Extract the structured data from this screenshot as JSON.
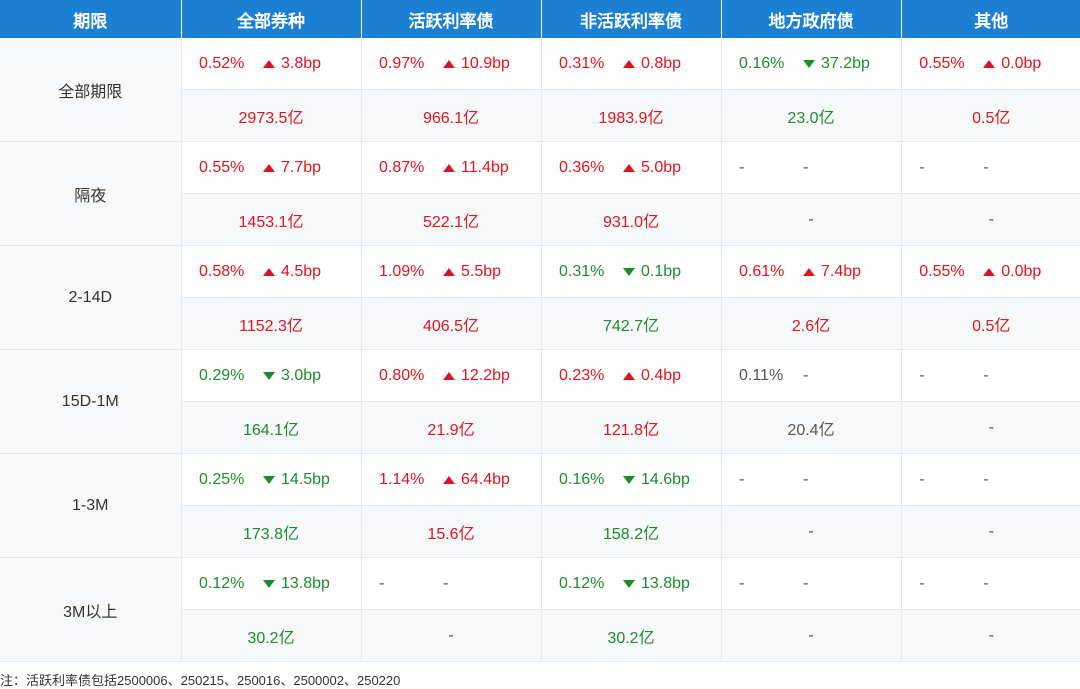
{
  "headers": [
    "期限",
    "全部券种",
    "活跃利率债",
    "非活跃利率债",
    "地方政府债",
    "其他"
  ],
  "colors": {
    "header": "#1b7fd3",
    "up": "#e0141e",
    "down": "#1c8c2c",
    "neutral": "#555555"
  },
  "rows": [
    {
      "label": "全部期限",
      "rates": [
        {
          "pct": "0.52%",
          "dir": "up",
          "chg": "3.8bp",
          "pct_color": "red",
          "chg_color": "red"
        },
        {
          "pct": "0.97%",
          "dir": "up",
          "chg": "10.9bp",
          "pct_color": "red",
          "chg_color": "red"
        },
        {
          "pct": "0.31%",
          "dir": "up",
          "chg": "0.8bp",
          "pct_color": "red",
          "chg_color": "red"
        },
        {
          "pct": "0.16%",
          "dir": "down",
          "chg": "37.2bp",
          "pct_color": "green",
          "chg_color": "green"
        },
        {
          "pct": "0.55%",
          "dir": "up",
          "chg": "0.0bp",
          "pct_color": "red",
          "chg_color": "red"
        }
      ],
      "amounts": [
        {
          "v": "2973.5亿",
          "color": "red"
        },
        {
          "v": "966.1亿",
          "color": "red"
        },
        {
          "v": "1983.9亿",
          "color": "red"
        },
        {
          "v": "23.0亿",
          "color": "green"
        },
        {
          "v": "0.5亿",
          "color": "red"
        }
      ]
    },
    {
      "label": "隔夜",
      "rates": [
        {
          "pct": "0.55%",
          "dir": "up",
          "chg": "7.7bp",
          "pct_color": "red",
          "chg_color": "red"
        },
        {
          "pct": "0.87%",
          "dir": "up",
          "chg": "11.4bp",
          "pct_color": "red",
          "chg_color": "red"
        },
        {
          "pct": "0.36%",
          "dir": "up",
          "chg": "5.0bp",
          "pct_color": "red",
          "chg_color": "red"
        },
        {
          "pct": "-",
          "dir": "none",
          "chg": "-",
          "pct_color": "neutral",
          "chg_color": "neutral"
        },
        {
          "pct": "-",
          "dir": "none",
          "chg": "-",
          "pct_color": "neutral",
          "chg_color": "neutral"
        }
      ],
      "amounts": [
        {
          "v": "1453.1亿",
          "color": "red"
        },
        {
          "v": "522.1亿",
          "color": "red"
        },
        {
          "v": "931.0亿",
          "color": "red"
        },
        {
          "v": "-",
          "color": "neutral"
        },
        {
          "v": "-",
          "color": "neutral"
        }
      ]
    },
    {
      "label": "2-14D",
      "rates": [
        {
          "pct": "0.58%",
          "dir": "up",
          "chg": "4.5bp",
          "pct_color": "red",
          "chg_color": "red"
        },
        {
          "pct": "1.09%",
          "dir": "up",
          "chg": "5.5bp",
          "pct_color": "red",
          "chg_color": "red"
        },
        {
          "pct": "0.31%",
          "dir": "down",
          "chg": "0.1bp",
          "pct_color": "green",
          "chg_color": "green"
        },
        {
          "pct": "0.61%",
          "dir": "up",
          "chg": "7.4bp",
          "pct_color": "red",
          "chg_color": "red"
        },
        {
          "pct": "0.55%",
          "dir": "up",
          "chg": "0.0bp",
          "pct_color": "red",
          "chg_color": "red"
        }
      ],
      "amounts": [
        {
          "v": "1152.3亿",
          "color": "red"
        },
        {
          "v": "406.5亿",
          "color": "red"
        },
        {
          "v": "742.7亿",
          "color": "green"
        },
        {
          "v": "2.6亿",
          "color": "red"
        },
        {
          "v": "0.5亿",
          "color": "red"
        }
      ]
    },
    {
      "label": "15D-1M",
      "rates": [
        {
          "pct": "0.29%",
          "dir": "down",
          "chg": "3.0bp",
          "pct_color": "green",
          "chg_color": "green"
        },
        {
          "pct": "0.80%",
          "dir": "up",
          "chg": "12.2bp",
          "pct_color": "red",
          "chg_color": "red"
        },
        {
          "pct": "0.23%",
          "dir": "up",
          "chg": "0.4bp",
          "pct_color": "red",
          "chg_color": "red"
        },
        {
          "pct": "0.11%",
          "dir": "none",
          "chg": "-",
          "pct_color": "neutral",
          "chg_color": "neutral"
        },
        {
          "pct": "-",
          "dir": "none",
          "chg": "-",
          "pct_color": "neutral",
          "chg_color": "neutral"
        }
      ],
      "amounts": [
        {
          "v": "164.1亿",
          "color": "green"
        },
        {
          "v": "21.9亿",
          "color": "red"
        },
        {
          "v": "121.8亿",
          "color": "red"
        },
        {
          "v": "20.4亿",
          "color": "neutral"
        },
        {
          "v": "-",
          "color": "neutral"
        }
      ]
    },
    {
      "label": "1-3M",
      "rates": [
        {
          "pct": "0.25%",
          "dir": "down",
          "chg": "14.5bp",
          "pct_color": "green",
          "chg_color": "green"
        },
        {
          "pct": "1.14%",
          "dir": "up",
          "chg": "64.4bp",
          "pct_color": "red",
          "chg_color": "red"
        },
        {
          "pct": "0.16%",
          "dir": "down",
          "chg": "14.6bp",
          "pct_color": "green",
          "chg_color": "green"
        },
        {
          "pct": "-",
          "dir": "none",
          "chg": "-",
          "pct_color": "neutral",
          "chg_color": "neutral"
        },
        {
          "pct": "-",
          "dir": "none",
          "chg": "-",
          "pct_color": "neutral",
          "chg_color": "neutral"
        }
      ],
      "amounts": [
        {
          "v": "173.8亿",
          "color": "green"
        },
        {
          "v": "15.6亿",
          "color": "red"
        },
        {
          "v": "158.2亿",
          "color": "green"
        },
        {
          "v": "-",
          "color": "neutral"
        },
        {
          "v": "-",
          "color": "neutral"
        }
      ]
    },
    {
      "label": "3M以上",
      "rates": [
        {
          "pct": "0.12%",
          "dir": "down",
          "chg": "13.8bp",
          "pct_color": "green",
          "chg_color": "green"
        },
        {
          "pct": "-",
          "dir": "none",
          "chg": "-",
          "pct_color": "neutral",
          "chg_color": "neutral"
        },
        {
          "pct": "0.12%",
          "dir": "down",
          "chg": "13.8bp",
          "pct_color": "green",
          "chg_color": "green"
        },
        {
          "pct": "-",
          "dir": "none",
          "chg": "-",
          "pct_color": "neutral",
          "chg_color": "neutral"
        },
        {
          "pct": "-",
          "dir": "none",
          "chg": "-",
          "pct_color": "neutral",
          "chg_color": "neutral"
        }
      ],
      "amounts": [
        {
          "v": "30.2亿",
          "color": "green"
        },
        {
          "v": "-",
          "color": "neutral"
        },
        {
          "v": "30.2亿",
          "color": "green"
        },
        {
          "v": "-",
          "color": "neutral"
        },
        {
          "v": "-",
          "color": "neutral"
        }
      ]
    }
  ],
  "note": "注：活跃利率债包括2500006、250215、250016、2500002、250220"
}
